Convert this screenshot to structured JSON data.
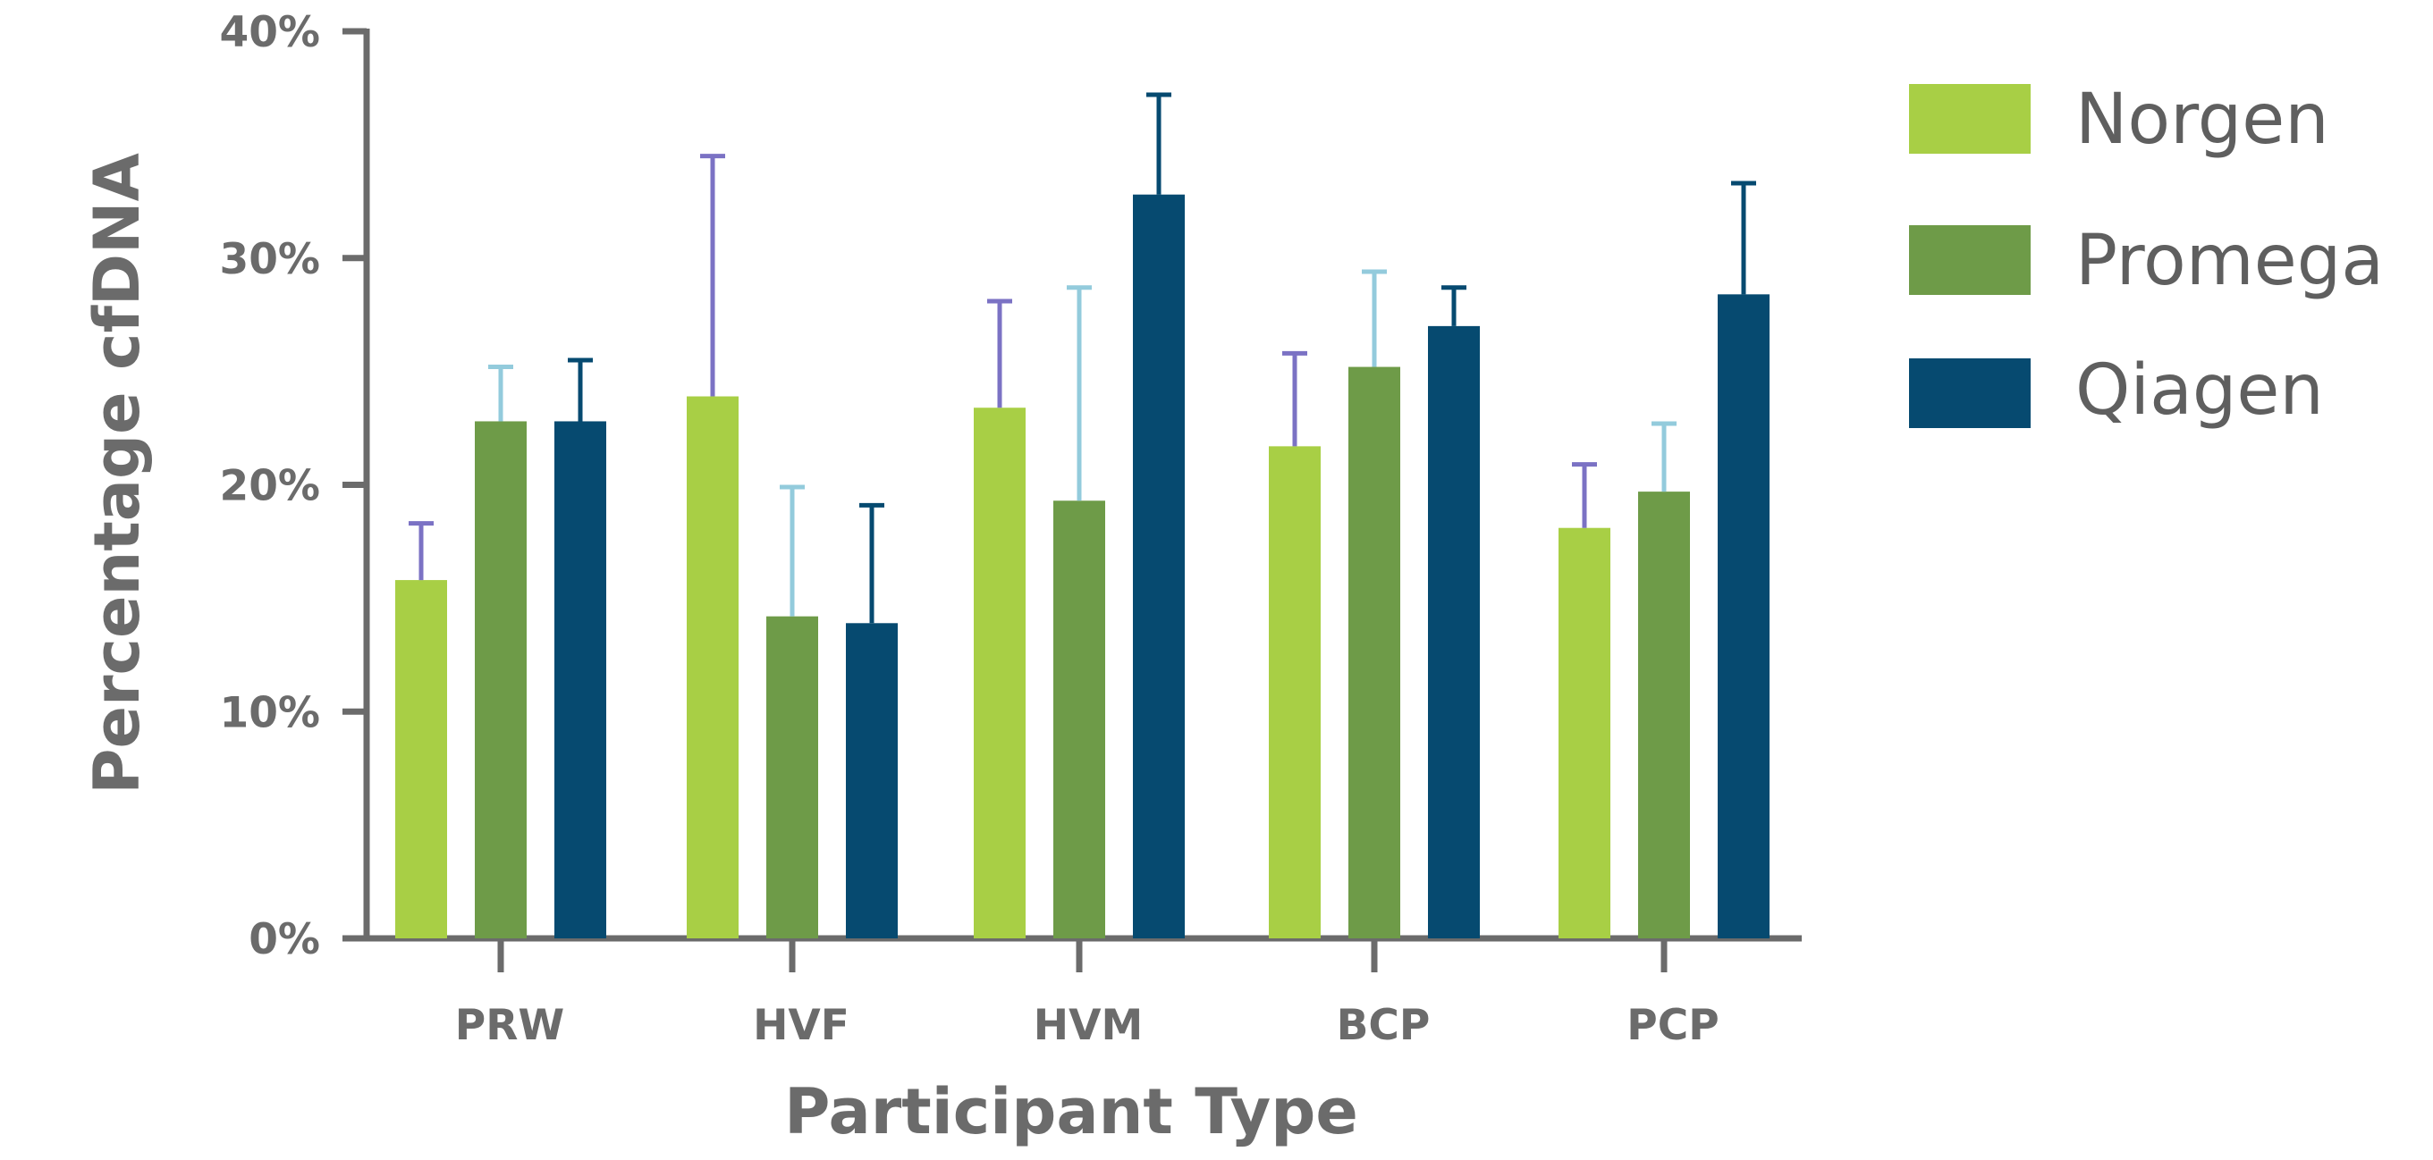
{
  "chart_data": {
    "type": "bar",
    "title": "",
    "xlabel": "Participant Type",
    "ylabel": "Percentage cfDNA",
    "categories": [
      "PRW",
      "HVF",
      "HVM",
      "BCP",
      "PCP"
    ],
    "ylim": [
      0,
      40
    ],
    "yticks": [
      0,
      10,
      20,
      30,
      40
    ],
    "ytick_labels": [
      "0%",
      "10%",
      "20%",
      "30%",
      "40%"
    ],
    "grid": false,
    "legend_position": "top-right",
    "series": [
      {
        "name": "Norgen",
        "color": "#a8cf45",
        "error_color": "#7b72c4",
        "values": [
          15.8,
          23.9,
          23.4,
          21.7,
          18.1
        ],
        "errors": [
          2.5,
          10.6,
          4.7,
          4.1,
          2.8
        ]
      },
      {
        "name": "Promega",
        "color": "#6e9b48",
        "error_color": "#93cbdc",
        "values": [
          22.8,
          14.2,
          19.3,
          25.2,
          19.7
        ],
        "errors": [
          2.4,
          5.7,
          9.4,
          4.2,
          3.0
        ]
      },
      {
        "name": "Qiagen",
        "color": "#064a70",
        "error_color": "#064a70",
        "values": [
          22.8,
          13.9,
          32.8,
          27.0,
          28.4
        ],
        "errors": [
          2.7,
          5.2,
          4.4,
          1.7,
          4.9
        ]
      }
    ]
  }
}
